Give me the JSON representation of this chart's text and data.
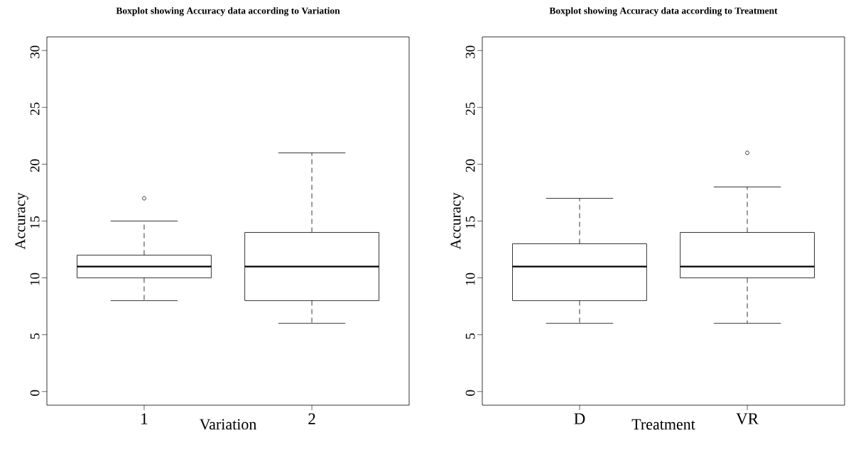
{
  "chart_data": [
    {
      "type": "box",
      "title": "Boxplot showing Accuracy data according to Variation",
      "xlabel": "Variation",
      "ylabel": "Accuracy",
      "categories": [
        "1",
        "2"
      ],
      "boxes": [
        {
          "low": 8,
          "q1": 10,
          "median": 11,
          "q3": 12,
          "high": 15,
          "outliers": [
            17
          ]
        },
        {
          "low": 6,
          "q1": 8,
          "median": 11,
          "q3": 14,
          "high": 21
        }
      ],
      "ylim": [
        -1.2,
        31.2
      ],
      "yticks": [
        0,
        5,
        10,
        15,
        20,
        25,
        30
      ],
      "grid": false
    },
    {
      "type": "box",
      "title": "Boxplot showing Accuracy data according to Treatment",
      "xlabel": "Treatment",
      "ylabel": "Accuracy",
      "categories": [
        "D",
        "VR"
      ],
      "boxes": [
        {
          "low": 6,
          "q1": 8,
          "median": 11,
          "q3": 13,
          "high": 17
        },
        {
          "low": 6,
          "q1": 10,
          "median": 11,
          "q3": 14,
          "high": 18,
          "outliers": [
            21
          ]
        }
      ],
      "ylim": [
        -1.2,
        31.2
      ],
      "yticks": [
        0,
        5,
        10,
        15,
        20,
        25,
        30
      ],
      "grid": false
    }
  ]
}
